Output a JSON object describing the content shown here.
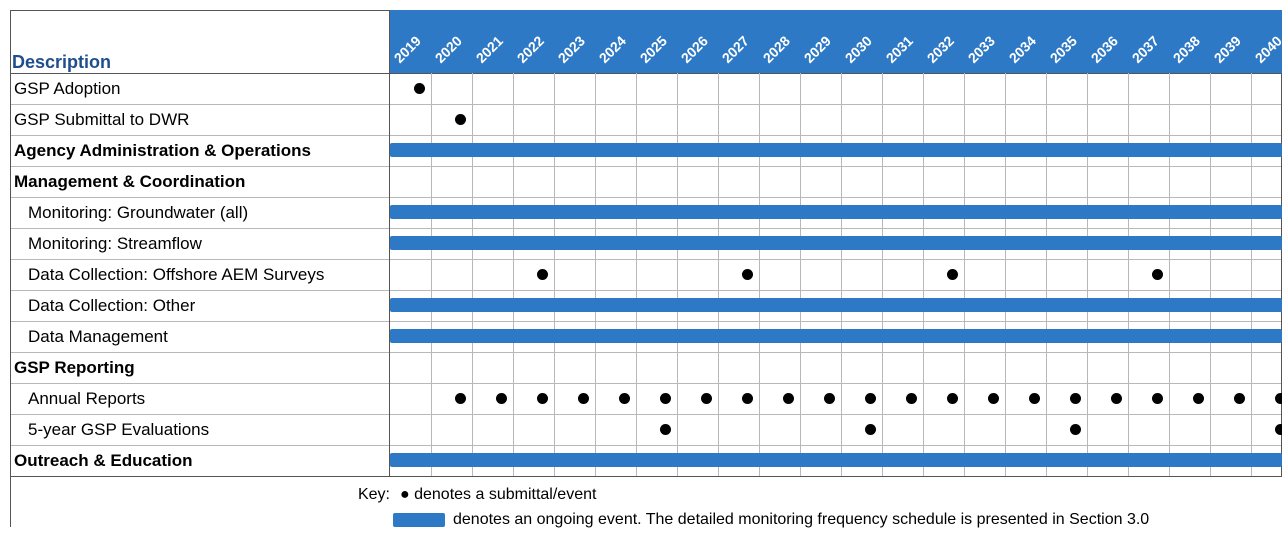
{
  "header": {
    "description": "Description"
  },
  "years": [
    "2019",
    "2020",
    "2021",
    "2022",
    "2023",
    "2024",
    "2025",
    "2026",
    "2027",
    "2028",
    "2029",
    "2030",
    "2031",
    "2032",
    "2033",
    "2034",
    "2035",
    "2036",
    "2037",
    "2038",
    "2039",
    "2040"
  ],
  "rows": [
    {
      "label": "GSP Adoption",
      "style": "plain",
      "type": "events",
      "events": [
        "2019"
      ]
    },
    {
      "label": "GSP Submittal to DWR",
      "style": "plain",
      "type": "events",
      "events": [
        "2020"
      ]
    },
    {
      "label": "Agency Administration & Operations",
      "style": "bold",
      "type": "ongoing",
      "events": []
    },
    {
      "label": "Management & Coordination",
      "style": "bold",
      "type": "none",
      "events": []
    },
    {
      "label": "Monitoring: Groundwater (all)",
      "style": "indent",
      "type": "ongoing",
      "events": []
    },
    {
      "label": "Monitoring: Streamflow",
      "style": "indent",
      "type": "ongoing",
      "events": []
    },
    {
      "label": "Data Collection: Offshore AEM Surveys",
      "style": "indent",
      "type": "events",
      "events": [
        "2022",
        "2027",
        "2032",
        "2037"
      ]
    },
    {
      "label": "Data Collection: Other",
      "style": "indent",
      "type": "ongoing",
      "events": []
    },
    {
      "label": "Data Management",
      "style": "indent",
      "type": "ongoing",
      "events": []
    },
    {
      "label": "GSP Reporting",
      "style": "bold",
      "type": "none",
      "events": []
    },
    {
      "label": "Annual Reports",
      "style": "indent",
      "type": "events",
      "events": [
        "2020",
        "2021",
        "2022",
        "2023",
        "2024",
        "2025",
        "2026",
        "2027",
        "2028",
        "2029",
        "2030",
        "2031",
        "2032",
        "2033",
        "2034",
        "2035",
        "2036",
        "2037",
        "2038",
        "2039",
        "2040"
      ]
    },
    {
      "label": "5-year GSP Evaluations",
      "style": "indent",
      "type": "events",
      "events": [
        "2025",
        "2030",
        "2035",
        "2040"
      ]
    },
    {
      "label": "Outreach & Education",
      "style": "bold",
      "type": "ongoing",
      "events": []
    }
  ],
  "key": {
    "label": "Key:",
    "event_text": "● denotes a submittal/event",
    "ongoing_text": "denotes an ongoing event. The detailed monitoring frequency schedule is presented in Section 3.0"
  },
  "colors": {
    "accent": "#2e79c5",
    "header_text": "#1f4e8c"
  }
}
